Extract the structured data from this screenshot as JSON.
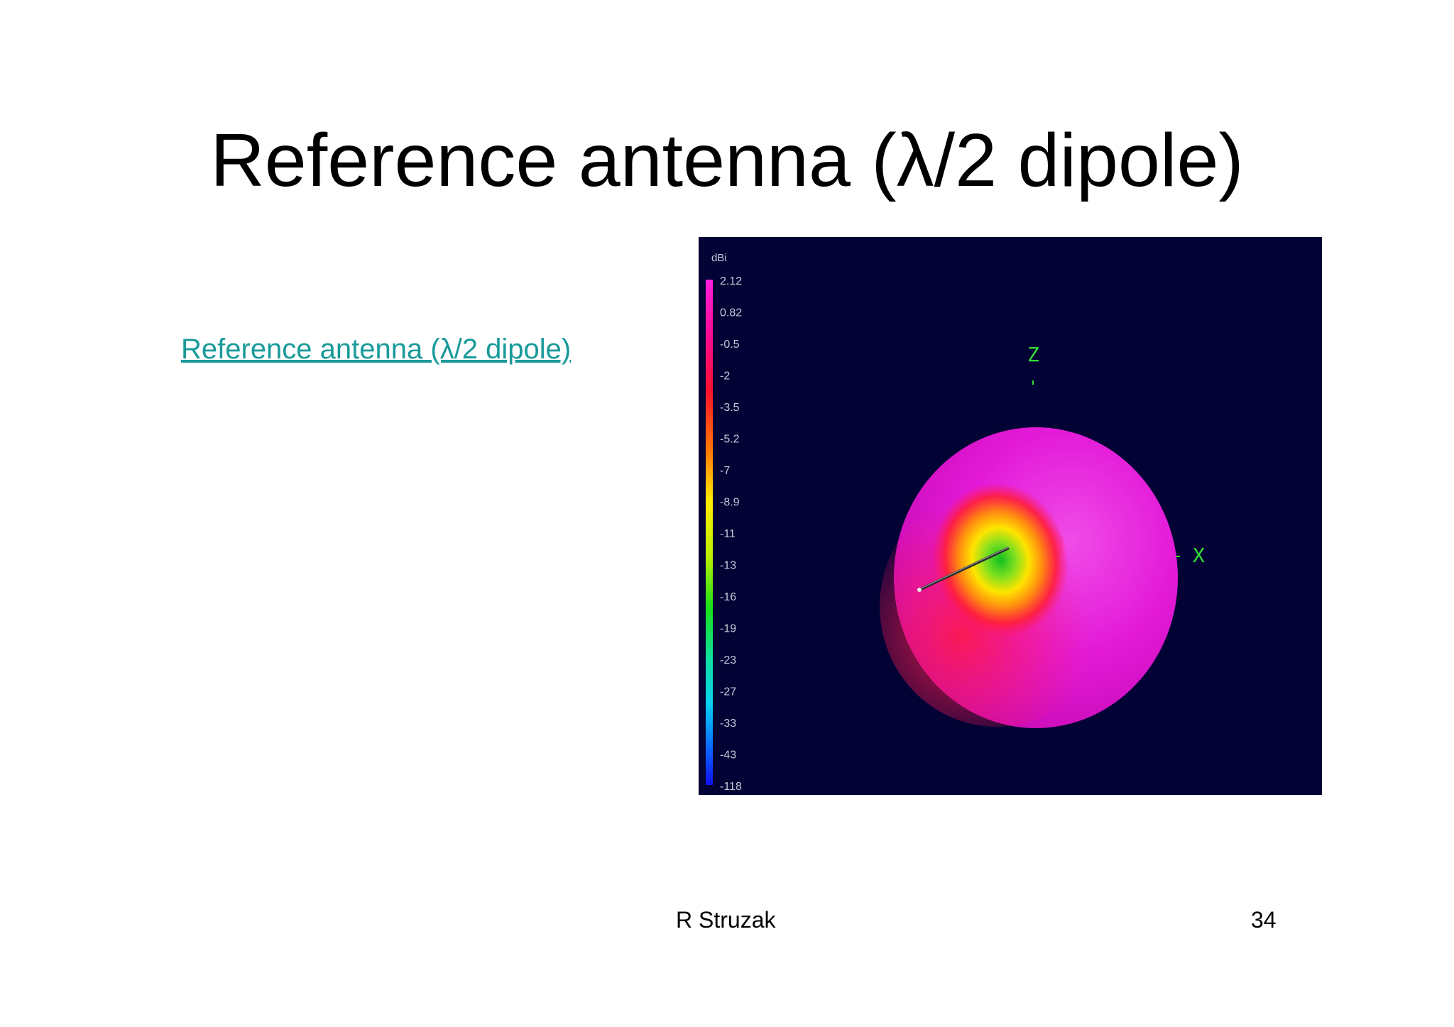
{
  "slide": {
    "title": "Reference antenna (λ/2 dipole)",
    "link_text": "Reference antenna (λ/2 dipole)",
    "author": "R Struzak",
    "page_number": "34"
  },
  "pattern_image": {
    "unit_label": "dBi",
    "scale_values": [
      "2.12",
      "0.82",
      "-0.5",
      "-2",
      "-3.5",
      "-5.2",
      "-7",
      "-8.9",
      "-11",
      "-13",
      "-16",
      "-19",
      "-23",
      "-27",
      "-33",
      "-43",
      "-118"
    ],
    "axis_z_label": "Z",
    "axis_x_label": "X",
    "colors": {
      "background": "#020235",
      "link": "#1a9a9a",
      "axis_labels": "#33dd33",
      "scale_text": "#c8c8d8"
    }
  }
}
